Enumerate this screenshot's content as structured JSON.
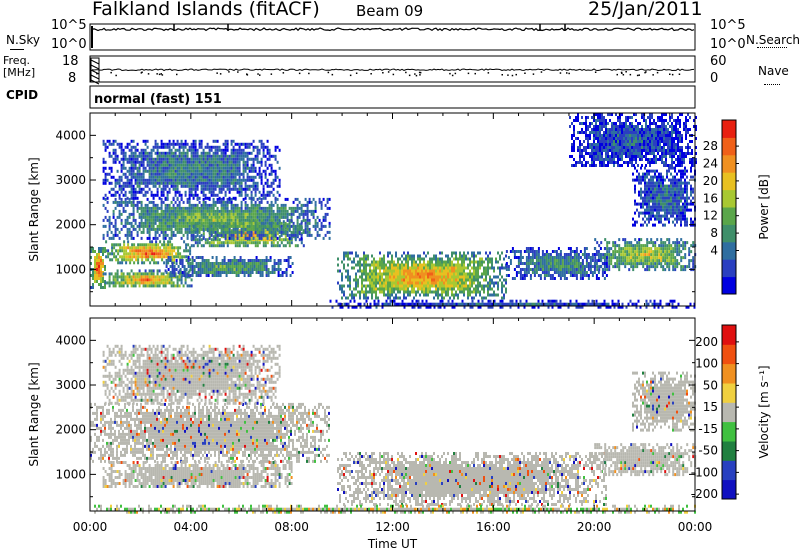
{
  "header": {
    "title": "Falkland Islands (fitACF)",
    "beam": "Beam 09",
    "date": "25/Jan/2011"
  },
  "status_panels": {
    "nsky_label": "N.Sky",
    "nsearch_label": "N.Search",
    "freq_label": "Freq.",
    "freq_unit": "[MHz]",
    "nave_label": "Nave",
    "cpid_label": "CPID",
    "cpid_text": "normal (fast) 151",
    "noise_ticks_left": [
      "10^5",
      "10^0"
    ],
    "noise_ticks_right": [
      "10^5",
      "10^0"
    ],
    "freq_ticks_left": [
      "18",
      "8"
    ],
    "nave_ticks_right": [
      "60",
      "0"
    ]
  },
  "chart_data": [
    {
      "type": "heatmap",
      "name": "power",
      "ylabel": "Slant Range [km]",
      "xlabel": "",
      "colorbar_label": "Power [dB]",
      "colorbar_ticks": [
        "28",
        "24",
        "20",
        "16",
        "12",
        "8",
        "4"
      ],
      "colorbar_colors": [
        "#0000e0",
        "#2a3fc0",
        "#2f6ea0",
        "#3f8f6a",
        "#5aa64a",
        "#a8c832",
        "#e8c020",
        "#f09020",
        "#f06018",
        "#e82010"
      ],
      "yticks": [
        "1000",
        "2000",
        "3000",
        "4000"
      ],
      "ylim": [
        180,
        4500
      ],
      "xlim": [
        "00:00",
        "24:00"
      ],
      "regions": [
        {
          "t0": 0.0,
          "t1": 0.6,
          "r0": 600,
          "r1": 1500,
          "level": 0.85
        },
        {
          "t0": 0.6,
          "t1": 4.0,
          "r0": 1150,
          "r1": 1650,
          "level": 0.8
        },
        {
          "t0": 4.0,
          "t1": 8.5,
          "r0": 1500,
          "r1": 2100,
          "level": 0.65
        },
        {
          "t0": 0.5,
          "t1": 9.5,
          "r0": 1700,
          "r1": 2600,
          "level": 0.45
        },
        {
          "t0": 0.5,
          "t1": 7.5,
          "r0": 2600,
          "r1": 3900,
          "level": 0.3
        },
        {
          "t0": 0.5,
          "t1": 4.0,
          "r0": 600,
          "r1": 1000,
          "level": 0.7
        },
        {
          "t0": 3.0,
          "t1": 8.0,
          "r0": 850,
          "r1": 1300,
          "level": 0.4
        },
        {
          "t0": 9.8,
          "t1": 16.5,
          "r0": 350,
          "r1": 1400,
          "level": 0.7
        },
        {
          "t0": 16.5,
          "t1": 20.5,
          "r0": 800,
          "r1": 1500,
          "level": 0.35
        },
        {
          "t0": 20.0,
          "t1": 24.0,
          "r0": 1000,
          "r1": 1700,
          "level": 0.55
        },
        {
          "t0": 21.5,
          "t1": 24.0,
          "r0": 2000,
          "r1": 3300,
          "level": 0.25
        },
        {
          "t0": 9.5,
          "t1": 24.0,
          "r0": 180,
          "r1": 320,
          "level": 0.2
        },
        {
          "t0": 19.0,
          "t1": 24.0,
          "r0": 3300,
          "r1": 4500,
          "level": 0.2
        }
      ]
    },
    {
      "type": "heatmap",
      "name": "velocity",
      "ylabel": "Slant Range [km]",
      "xlabel": "Time UT",
      "colorbar_label": "Velocity [m s⁻¹]",
      "colorbar_ticks": [
        "200",
        "100",
        "50",
        "15",
        "-15",
        "-50",
        "-100",
        "-200"
      ],
      "colorbar_colors": [
        "#1010c0",
        "#2840c0",
        "#208040",
        "#40c040",
        "#b8b8b0",
        "#f0d040",
        "#f09020",
        "#f05010",
        "#e01010"
      ],
      "yticks": [
        "1000",
        "2000",
        "3000",
        "4000"
      ],
      "ylim": [
        180,
        4500
      ],
      "xticks": [
        "00:00",
        "04:00",
        "08:00",
        "12:00",
        "16:00",
        "20:00",
        "00:00"
      ],
      "regions": [
        {
          "t0": 0.0,
          "t1": 9.5,
          "r0": 1300,
          "r1": 2600,
          "level": 0.5
        },
        {
          "t0": 0.5,
          "t1": 7.5,
          "r0": 2600,
          "r1": 3900,
          "level": 0.5
        },
        {
          "t0": 0.5,
          "t1": 8.0,
          "r0": 700,
          "r1": 1300,
          "level": 0.5
        },
        {
          "t0": 9.8,
          "t1": 20.5,
          "r0": 350,
          "r1": 1500,
          "level": 0.5
        },
        {
          "t0": 20.0,
          "t1": 24.0,
          "r0": 1000,
          "r1": 1700,
          "level": 0.5
        },
        {
          "t0": 21.5,
          "t1": 24.0,
          "r0": 2000,
          "r1": 3300,
          "level": 0.5
        },
        {
          "t0": 0.0,
          "t1": 24.0,
          "r0": 180,
          "r1": 320,
          "level": 0.72
        }
      ]
    }
  ]
}
